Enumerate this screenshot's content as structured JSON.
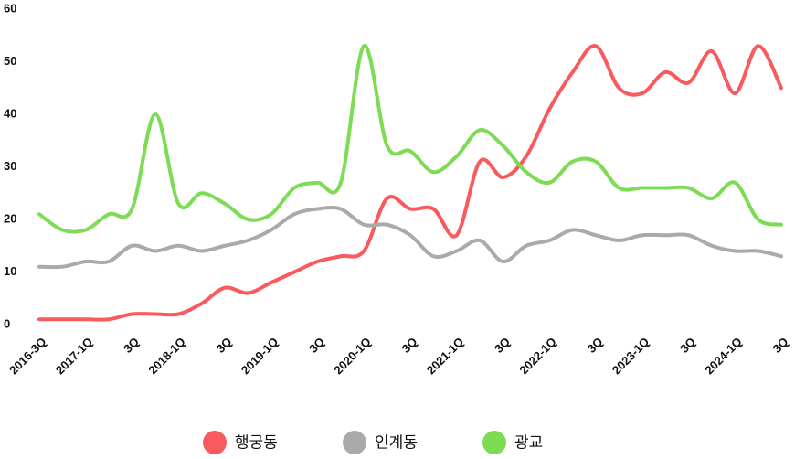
{
  "chart_data": {
    "type": "line",
    "categories": [
      "2016-3Q",
      null,
      "2017-1Q",
      null,
      "3Q",
      null,
      "2018-1Q",
      null,
      "3Q",
      null,
      "2019-1Q",
      null,
      "3Q",
      null,
      "2020-1Q",
      null,
      "3Q",
      null,
      "2021-1Q",
      null,
      "3Q",
      null,
      "2022-1Q",
      null,
      "3Q",
      null,
      "2023-1Q",
      null,
      "3Q",
      null,
      "2024-1Q",
      null,
      "3Q"
    ],
    "series": [
      {
        "name": "행궁동",
        "color": "#f95a5e",
        "values": [
          1,
          1,
          1,
          1,
          2,
          2,
          2,
          4,
          7,
          6,
          8,
          10,
          12,
          13,
          14,
          24,
          22,
          22,
          17,
          31,
          28,
          32,
          41,
          48,
          53,
          45,
          44,
          48,
          46,
          52,
          44,
          53,
          45
        ]
      },
      {
        "name": "인계동",
        "color": "#aaaaaa",
        "values": [
          11,
          11,
          12,
          12,
          15,
          14,
          15,
          14,
          15,
          16,
          18,
          21,
          22,
          22,
          19,
          19,
          17,
          13,
          14,
          16,
          12,
          15,
          16,
          18,
          17,
          16,
          17,
          17,
          17,
          15,
          14,
          14,
          13
        ]
      },
      {
        "name": "광교",
        "color": "#7ddb54",
        "values": [
          21,
          18,
          18,
          21,
          22,
          40,
          23,
          25,
          23,
          20,
          21,
          26,
          27,
          27,
          53,
          34,
          33,
          29,
          32,
          37,
          34,
          29,
          27,
          31,
          31,
          26,
          26,
          26,
          26,
          24,
          27,
          20,
          19
        ]
      }
    ],
    "ylim": [
      0,
      60
    ],
    "yticks": [
      0,
      10,
      20,
      30,
      40,
      50,
      60
    ],
    "grid": false,
    "legend": "bottom"
  }
}
